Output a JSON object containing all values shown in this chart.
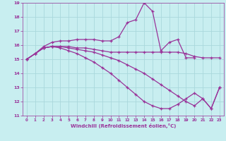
{
  "bg_color": "#c8eef0",
  "grid_color": "#aad8dc",
  "line_color": "#993399",
  "xlabel": "Windchill (Refroidissement éolien,°C)",
  "xlim": [
    -0.5,
    23.5
  ],
  "ylim": [
    11,
    19
  ],
  "yticks": [
    11,
    12,
    13,
    14,
    15,
    16,
    17,
    18,
    19
  ],
  "xticks": [
    0,
    1,
    2,
    3,
    4,
    5,
    6,
    7,
    8,
    9,
    10,
    11,
    12,
    13,
    14,
    15,
    16,
    17,
    18,
    19,
    20,
    21,
    22,
    23
  ],
  "series": [
    {
      "x": [
        0,
        1,
        2,
        3,
        4,
        5,
        6,
        7,
        8,
        9,
        10,
        11,
        12,
        13,
        14,
        15,
        16,
        17,
        18,
        19,
        20
      ],
      "y": [
        15.0,
        15.4,
        15.9,
        16.2,
        16.3,
        16.3,
        16.4,
        16.4,
        16.4,
        16.3,
        16.3,
        16.6,
        17.6,
        17.8,
        19.0,
        18.4,
        15.6,
        16.2,
        16.4,
        15.1,
        15.1
      ]
    },
    {
      "x": [
        0,
        1,
        2,
        3,
        4,
        5,
        6,
        7,
        8,
        9,
        10,
        11,
        12,
        13,
        14,
        15,
        16,
        17,
        18,
        19,
        20,
        21,
        22,
        23
      ],
      "y": [
        15.0,
        15.4,
        15.8,
        15.9,
        15.9,
        15.9,
        15.8,
        15.8,
        15.7,
        15.6,
        15.5,
        15.5,
        15.5,
        15.5,
        15.5,
        15.5,
        15.5,
        15.5,
        15.5,
        15.4,
        15.2,
        15.1,
        15.1,
        15.1
      ]
    },
    {
      "x": [
        0,
        1,
        2,
        3,
        4,
        5,
        6,
        7,
        8,
        9,
        10,
        11,
        12,
        13,
        14,
        15,
        16,
        17,
        18,
        19,
        20,
        21,
        22,
        23
      ],
      "y": [
        15.0,
        15.4,
        15.8,
        15.9,
        15.9,
        15.8,
        15.7,
        15.6,
        15.5,
        15.3,
        15.1,
        14.9,
        14.6,
        14.3,
        14.0,
        13.6,
        13.2,
        12.8,
        12.4,
        12.0,
        11.7,
        12.2,
        11.5,
        13.0
      ]
    },
    {
      "x": [
        0,
        1,
        2,
        3,
        4,
        5,
        6,
        7,
        8,
        9,
        10,
        11,
        12,
        13,
        14,
        15,
        16,
        17,
        18,
        19,
        20,
        21,
        22,
        23
      ],
      "y": [
        15.0,
        15.4,
        15.8,
        15.9,
        15.8,
        15.6,
        15.4,
        15.1,
        14.8,
        14.4,
        14.0,
        13.5,
        13.0,
        12.5,
        12.0,
        11.7,
        11.5,
        11.5,
        11.8,
        12.2,
        12.6,
        12.2,
        11.5,
        13.0
      ]
    }
  ]
}
